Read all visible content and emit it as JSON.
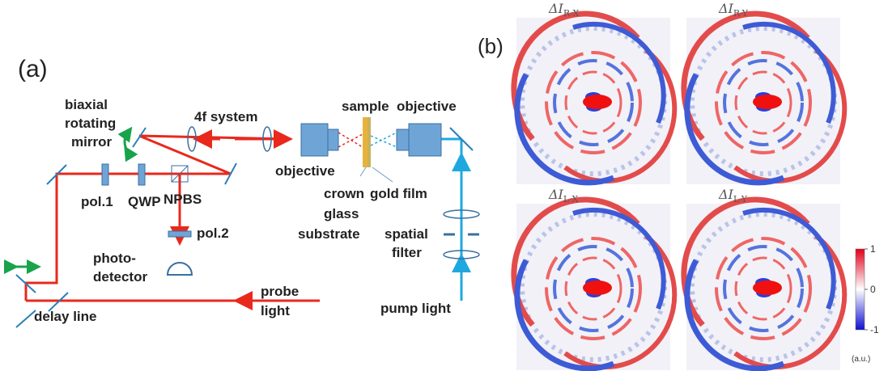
{
  "panel_a": {
    "label": "(a)",
    "biaxial_mirror": [
      "biaxial",
      "rotating",
      "mirror"
    ],
    "four_f": "4f system",
    "sample": "sample",
    "objective_left": "objective",
    "objective_right": "objective",
    "pol1": "pol.1",
    "qwp": "QWP",
    "npbs": "NPBS",
    "pol2": "pol.2",
    "photodetector": [
      "photo-",
      "detector"
    ],
    "delay_line": "delay line",
    "probe_light": [
      "probe",
      "light"
    ],
    "substrate": [
      "crown",
      "glass",
      "substrate"
    ],
    "gold_film": "gold film",
    "spatial_filter": [
      "spatial",
      "filter"
    ],
    "pump_light": "pump light"
  },
  "panel_b": {
    "label": "(b)",
    "images": [
      {
        "symbol": "ΔI",
        "subscript": "R-X"
      },
      {
        "symbol": "ΔI",
        "subscript": "R-Y"
      },
      {
        "symbol": "ΔI",
        "subscript": "L-X"
      },
      {
        "symbol": "ΔI",
        "subscript": "L-Y"
      }
    ],
    "colorbar": {
      "ticks": [
        1,
        0,
        -1
      ],
      "unit": "(a.u.)"
    }
  }
}
